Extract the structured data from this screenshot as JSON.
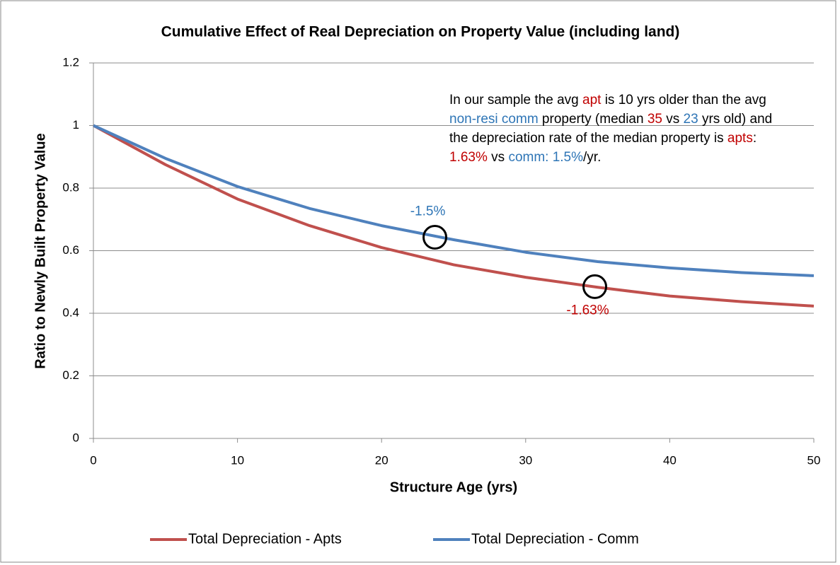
{
  "chart_data": {
    "type": "line",
    "title": "Cumulative Effect of Real Depreciation on Property Value (including land)",
    "x_label": "Structure Age (yrs)",
    "y_label": "Ratio to Newly Built Property Value",
    "x": [
      0,
      5,
      10,
      15,
      20,
      25,
      30,
      35,
      40,
      45,
      50
    ],
    "series": [
      {
        "name": "Total Depreciation - Apts",
        "color": "#c0504d",
        "values": [
          1,
          0.875,
          0.765,
          0.68,
          0.61,
          0.555,
          0.515,
          0.483,
          0.455,
          0.437,
          0.423
        ]
      },
      {
        "name": "Total Depreciation - Comm",
        "color": "#4f81bd",
        "values": [
          1,
          0.895,
          0.805,
          0.735,
          0.68,
          0.635,
          0.595,
          0.565,
          0.545,
          0.53,
          0.52
        ]
      }
    ],
    "xlim": [
      0,
      50
    ],
    "xticks": [
      0,
      10,
      20,
      30,
      40,
      50
    ],
    "ylim": [
      0,
      1.2
    ],
    "yticks": [
      0,
      0.2,
      0.4,
      0.6,
      0.8,
      1,
      1.2
    ],
    "grid": true,
    "legend": "bottom",
    "highlights": [
      {
        "x": 23.7,
        "y": 0.643,
        "label": "-1.5%",
        "color": "#2e75b6",
        "label_side": "above"
      },
      {
        "x": 34.8,
        "y": 0.485,
        "label": "-1.63%",
        "color": "#c00000",
        "label_side": "below"
      }
    ],
    "note": [
      {
        "text": "In our sample the avg ",
        "color": "#000000"
      },
      {
        "text": "apt",
        "color": "#c00000"
      },
      {
        "text": " is 10 yrs older than the avg ",
        "color": "#000000"
      },
      {
        "text": "non-resi comm",
        "color": "#2e75b6"
      },
      {
        "text": " property (median ",
        "color": "#000000"
      },
      {
        "text": "35",
        "color": "#c00000"
      },
      {
        "text": " vs ",
        "color": "#000000"
      },
      {
        "text": "23",
        "color": "#2e75b6"
      },
      {
        "text": " yrs old) and the depreciation rate of the median property is ",
        "color": "#000000"
      },
      {
        "text": "apts",
        "color": "#c00000"
      },
      {
        "text": ": ",
        "color": "#000000"
      },
      {
        "text": "1.63%",
        "color": "#c00000"
      },
      {
        "text": " vs ",
        "color": "#000000"
      },
      {
        "text": "comm: 1.5%",
        "color": "#2e75b6"
      },
      {
        "text": "/yr.",
        "color": "#000000"
      }
    ]
  }
}
